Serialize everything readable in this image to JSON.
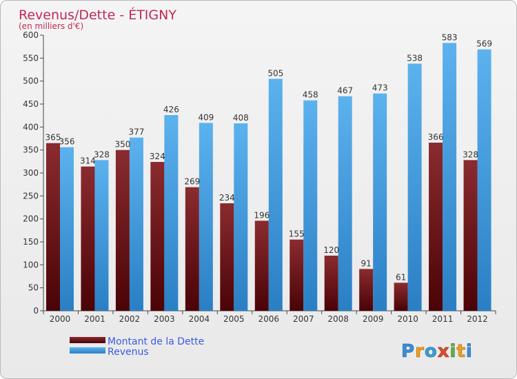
{
  "chart_data": {
    "type": "bar",
    "title": "Revenus/Dette - ÉTIGNY",
    "subtitle": "(en milliers d'€)",
    "categories": [
      "2000",
      "2001",
      "2002",
      "2003",
      "2004",
      "2005",
      "2006",
      "2007",
      "2008",
      "2009",
      "2010",
      "2011",
      "2012"
    ],
    "series": [
      {
        "name": "Montant de la Dette",
        "values": [
          365,
          314,
          350,
          324,
          269,
          234,
          196,
          155,
          120,
          91,
          61,
          366,
          328
        ]
      },
      {
        "name": "Revenus",
        "values": [
          356,
          328,
          377,
          426,
          409,
          408,
          505,
          458,
          467,
          473,
          538,
          583,
          569
        ]
      }
    ],
    "ylim": [
      0,
      600
    ],
    "yticks": [
      0,
      50,
      100,
      150,
      200,
      250,
      300,
      350,
      400,
      450,
      500,
      550,
      600
    ],
    "grid": false,
    "legend_position": "bottom-left"
  },
  "colors": {
    "debt": "#7a1a1e",
    "debt_dark": "#4a0306",
    "revenue": "#4aa3e6",
    "revenue_dark": "#2477bb",
    "title": "#c02a55",
    "legend_text": "#3a5ae0"
  },
  "logo": {
    "text": "Proxiti"
  }
}
